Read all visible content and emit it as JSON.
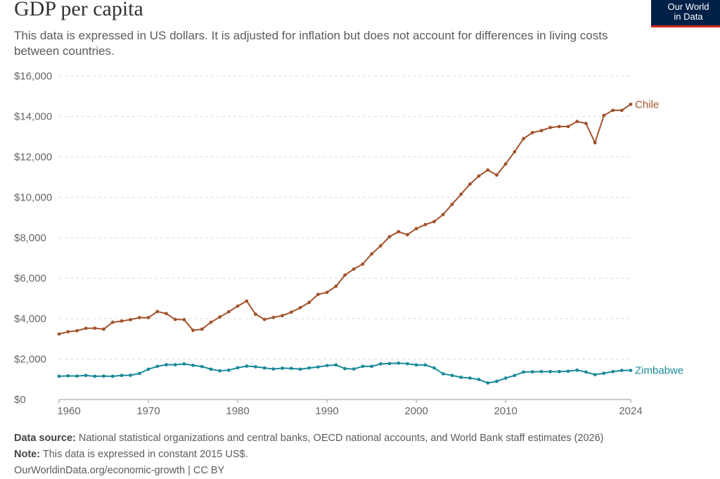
{
  "header": {
    "title": "GDP per capita",
    "subtitle": "This data is expressed in US dollars. It is adjusted for inflation but does not account for differences in living costs between countries."
  },
  "logo": {
    "line1": "Our World",
    "line2": "in Data",
    "bg": "#002147",
    "accent": "#ce261e"
  },
  "chart_data": {
    "type": "line",
    "title": "GDP per capita",
    "xlim": [
      1960,
      2024
    ],
    "ylim": [
      0,
      16000
    ],
    "grid": true,
    "legend": "line-end labels",
    "x_ticks": [
      "1960",
      "1970",
      "1980",
      "1990",
      "2000",
      "2010",
      "2024"
    ],
    "y_ticks": [
      "$0",
      "$2,000",
      "$4,000",
      "$6,000",
      "$8,000",
      "$10,000",
      "$12,000",
      "$14,000",
      "$16,000"
    ],
    "x": [
      1960,
      1961,
      1962,
      1963,
      1964,
      1965,
      1966,
      1967,
      1968,
      1969,
      1970,
      1971,
      1972,
      1973,
      1974,
      1975,
      1976,
      1977,
      1978,
      1979,
      1980,
      1981,
      1982,
      1983,
      1984,
      1985,
      1986,
      1987,
      1988,
      1989,
      1990,
      1991,
      1992,
      1993,
      1994,
      1995,
      1996,
      1997,
      1998,
      1999,
      2000,
      2001,
      2002,
      2003,
      2004,
      2005,
      2006,
      2007,
      2008,
      2009,
      2010,
      2011,
      2012,
      2013,
      2014,
      2015,
      2016,
      2017,
      2018,
      2019,
      2020,
      2021,
      2022,
      2023,
      2024
    ],
    "series": [
      {
        "name": "Chile",
        "color": "#a2522b",
        "values": [
          3240,
          3350,
          3400,
          3520,
          3530,
          3480,
          3820,
          3880,
          3950,
          4050,
          4050,
          4350,
          4250,
          3960,
          3950,
          3420,
          3480,
          3820,
          4080,
          4340,
          4620,
          4870,
          4220,
          3960,
          4060,
          4150,
          4320,
          4540,
          4800,
          5200,
          5300,
          5600,
          6150,
          6450,
          6700,
          7200,
          7600,
          8050,
          8300,
          8150,
          8450,
          8650,
          8800,
          9150,
          9650,
          10150,
          10650,
          11050,
          11350,
          11100,
          11650,
          12250,
          12900,
          13200,
          13300,
          13450,
          13500,
          13500,
          13750,
          13650,
          12700,
          14050,
          14300,
          14300,
          14600
        ]
      },
      {
        "name": "Zimbabwe",
        "color": "#1a8a9a",
        "values": [
          1150,
          1170,
          1160,
          1190,
          1150,
          1160,
          1150,
          1190,
          1200,
          1290,
          1500,
          1640,
          1720,
          1720,
          1760,
          1690,
          1630,
          1500,
          1420,
          1450,
          1570,
          1650,
          1620,
          1560,
          1510,
          1550,
          1540,
          1500,
          1560,
          1610,
          1680,
          1710,
          1530,
          1510,
          1640,
          1640,
          1760,
          1780,
          1800,
          1770,
          1710,
          1710,
          1560,
          1270,
          1190,
          1100,
          1060,
          990,
          820,
          900,
          1060,
          1190,
          1360,
          1370,
          1380,
          1380,
          1380,
          1400,
          1450,
          1360,
          1230,
          1300,
          1380,
          1440,
          1440
        ]
      }
    ]
  },
  "footer": {
    "source_label": "Data source:",
    "source_text": "National statistical organizations and central banks, OECD national accounts, and World Bank staff estimates (2026)",
    "note_label": "Note:",
    "note_text": "This data is expressed in constant 2015 US$.",
    "link": "OurWorldinData.org/economic-growth | CC BY"
  }
}
